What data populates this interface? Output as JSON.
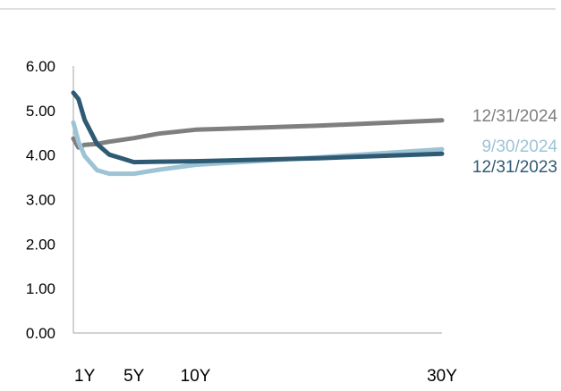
{
  "chart_data": {
    "type": "line",
    "title": "",
    "xlabel": "",
    "ylabel": "",
    "x_ticks": [
      {
        "label": "1Y",
        "maturity_years": 1
      },
      {
        "label": "5Y",
        "maturity_years": 5
      },
      {
        "label": "10Y",
        "maturity_years": 10
      },
      {
        "label": "30Y",
        "maturity_years": 30
      }
    ],
    "xlim": [
      0.083,
      30
    ],
    "ylim": [
      0,
      6
    ],
    "y_ticks": [
      "0.00",
      "1.00",
      "2.00",
      "3.00",
      "4.00",
      "5.00",
      "6.00"
    ],
    "grid": false,
    "legend": "end-of-line labels",
    "series": [
      {
        "name": "12/31/2024",
        "color": "#7f7f7f",
        "points": [
          {
            "x": 0.083,
            "y": 4.37
          },
          {
            "x": 0.5,
            "y": 4.17
          },
          {
            "x": 1,
            "y": 4.23
          },
          {
            "x": 2,
            "y": 4.25
          },
          {
            "x": 3,
            "y": 4.3
          },
          {
            "x": 5,
            "y": 4.38
          },
          {
            "x": 7,
            "y": 4.48
          },
          {
            "x": 10,
            "y": 4.57
          },
          {
            "x": 20,
            "y": 4.66
          },
          {
            "x": 30,
            "y": 4.78
          }
        ]
      },
      {
        "name": "9/30/2024",
        "color": "#9dc3d4",
        "points": [
          {
            "x": 0.083,
            "y": 4.73
          },
          {
            "x": 0.5,
            "y": 4.3
          },
          {
            "x": 1,
            "y": 3.98
          },
          {
            "x": 2,
            "y": 3.66
          },
          {
            "x": 3,
            "y": 3.58
          },
          {
            "x": 5,
            "y": 3.58
          },
          {
            "x": 7,
            "y": 3.67
          },
          {
            "x": 10,
            "y": 3.78
          },
          {
            "x": 20,
            "y": 3.95
          },
          {
            "x": 30,
            "y": 4.13
          }
        ]
      },
      {
        "name": "12/31/2023",
        "color": "#2e5a73",
        "points": [
          {
            "x": 0.083,
            "y": 5.4
          },
          {
            "x": 0.5,
            "y": 5.26
          },
          {
            "x": 1,
            "y": 4.79
          },
          {
            "x": 2,
            "y": 4.25
          },
          {
            "x": 3,
            "y": 4.01
          },
          {
            "x": 5,
            "y": 3.84
          },
          {
            "x": 7,
            "y": 3.85
          },
          {
            "x": 10,
            "y": 3.86
          },
          {
            "x": 20,
            "y": 3.93
          },
          {
            "x": 30,
            "y": 4.03
          }
        ]
      }
    ]
  }
}
